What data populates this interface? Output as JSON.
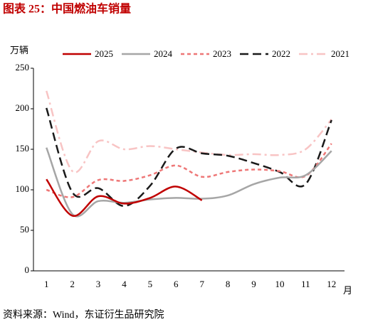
{
  "chart_data": {
    "type": "line",
    "title": "图表 25：中国燃油车销量",
    "y_label": "万辆",
    "x_label": "月",
    "source": "资料来源：Wind，东证衍生品研究院",
    "categories": [
      "1",
      "2",
      "3",
      "4",
      "5",
      "6",
      "7",
      "8",
      "9",
      "10",
      "11",
      "12"
    ],
    "ylim": [
      0,
      250
    ],
    "yticks": [
      0,
      50,
      100,
      150,
      200,
      250
    ],
    "series": [
      {
        "name": "2025",
        "color": "#c00000",
        "dash": "solid",
        "values": [
          113,
          68,
          92,
          83,
          90,
          104,
          87,
          null,
          null,
          null,
          null,
          null
        ]
      },
      {
        "name": "2024",
        "color": "#a6a6a6",
        "dash": "solid",
        "values": [
          152,
          70,
          86,
          84,
          88,
          90,
          89,
          93,
          107,
          115,
          118,
          148
        ]
      },
      {
        "name": "2023",
        "color": "#ee7777",
        "dash": "dashed",
        "values": [
          100,
          91,
          112,
          111,
          118,
          130,
          116,
          122,
          125,
          123,
          117,
          157
        ]
      },
      {
        "name": "2022",
        "color": "#1a1a1a",
        "dash": "longdash",
        "values": [
          201,
          97,
          102,
          80,
          105,
          151,
          145,
          142,
          133,
          122,
          107,
          186
        ]
      },
      {
        "name": "2021",
        "color": "#f8c4c4",
        "dash": "dashdot",
        "values": [
          222,
          123,
          160,
          150,
          154,
          150,
          146,
          143,
          144,
          143,
          150,
          187
        ]
      }
    ]
  }
}
